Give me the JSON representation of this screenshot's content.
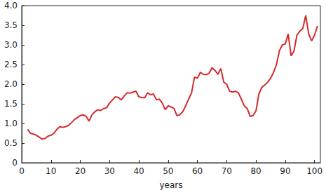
{
  "chart_data": {
    "type": "line",
    "x_label": "years",
    "color": "#d42a2f",
    "grid": false,
    "xlim": [
      0,
      102
    ],
    "xticks": [
      0,
      10,
      20,
      30,
      40,
      50,
      60,
      70,
      80,
      90,
      100
    ],
    "ylim": [
      0,
      4
    ],
    "yticks": [
      0,
      0.5,
      {
        "value": 1,
        "label": "1.0"
      },
      1.5,
      {
        "value": 2,
        "label": "2.0"
      },
      2.5,
      {
        "value": 3,
        "label": "3.0"
      },
      3.5,
      {
        "value": 4,
        "label": "4.0"
      }
    ],
    "x": [
      2,
      3,
      4,
      5,
      6,
      7,
      8,
      9,
      10,
      11,
      12,
      13,
      14,
      15,
      16,
      17,
      18,
      19,
      20,
      21,
      22,
      23,
      24,
      25,
      26,
      27,
      28,
      29,
      30,
      31,
      32,
      33,
      34,
      35,
      36,
      37,
      38,
      39,
      40,
      41,
      42,
      43,
      44,
      45,
      46,
      47,
      48,
      49,
      50,
      51,
      52,
      53,
      54,
      55,
      56,
      57,
      58,
      59,
      60,
      61,
      62,
      63,
      64,
      65,
      66,
      67,
      68,
      69,
      70,
      71,
      72,
      73,
      74,
      75,
      76,
      77,
      78,
      79,
      80,
      81,
      82,
      83,
      84,
      85,
      86,
      87,
      88,
      89,
      90,
      91,
      92,
      93,
      94,
      95,
      96,
      97,
      98,
      99,
      100,
      101
    ],
    "values": [
      0.85,
      0.75,
      0.73,
      0.7,
      0.65,
      0.6,
      0.62,
      0.68,
      0.7,
      0.75,
      0.85,
      0.92,
      0.9,
      0.92,
      0.95,
      1.02,
      1.1,
      1.15,
      1.2,
      1.22,
      1.18,
      1.06,
      1.22,
      1.3,
      1.35,
      1.33,
      1.38,
      1.4,
      1.52,
      1.6,
      1.68,
      1.66,
      1.6,
      1.7,
      1.78,
      1.77,
      1.8,
      1.82,
      1.68,
      1.66,
      1.65,
      1.78,
      1.73,
      1.75,
      1.6,
      1.62,
      1.52,
      1.35,
      1.45,
      1.42,
      1.38,
      1.2,
      1.22,
      1.3,
      1.45,
      1.62,
      1.78,
      2.18,
      2.15,
      2.3,
      2.25,
      2.24,
      2.28,
      2.42,
      2.35,
      2.25,
      2.4,
      2.05,
      2.0,
      1.82,
      1.8,
      1.82,
      1.78,
      1.62,
      1.45,
      1.38,
      1.18,
      1.2,
      1.32,
      1.75,
      1.92,
      1.98,
      2.05,
      2.15,
      2.3,
      2.5,
      2.85,
      3.0,
      3.02,
      3.28,
      2.72,
      2.85,
      3.25,
      3.35,
      3.42,
      3.75,
      3.28,
      3.1,
      3.25,
      3.48
    ]
  }
}
